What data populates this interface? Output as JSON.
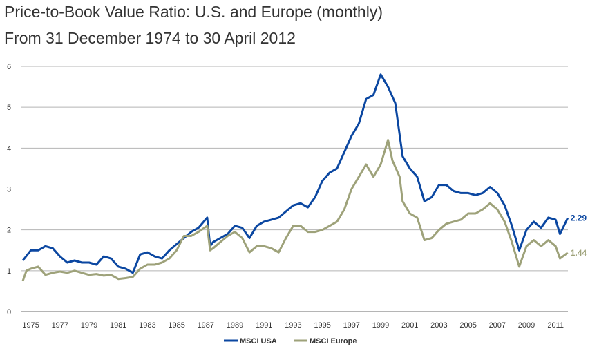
{
  "chart_data": {
    "type": "line",
    "title": "Price-to-Book Value Ratio: U.S. and Europe (monthly)",
    "subtitle": "From 31 December 1974 to 30 April 2012",
    "xlabel": "",
    "ylabel": "",
    "ylim": [
      0,
      6
    ],
    "yticks": [
      "0",
      "1",
      "2",
      "3",
      "4",
      "5",
      "6"
    ],
    "xticks": [
      "1975",
      "1977",
      "1979",
      "1981",
      "1983",
      "1985",
      "1987",
      "1989",
      "1991",
      "1993",
      "1995",
      "1997",
      "1999",
      "2001",
      "2003",
      "2005",
      "2007",
      "2009",
      "2011"
    ],
    "grid": true,
    "legend_position": "bottom",
    "series": [
      {
        "name": "MSCI USA",
        "color": "#0b47a1",
        "end_label": "2.29",
        "x": [
          1974.95,
          1975.5,
          1976,
          1976.5,
          1977,
          1977.5,
          1978,
          1978.5,
          1979,
          1979.5,
          1980,
          1980.5,
          1981,
          1981.5,
          1982,
          1982.5,
          1983,
          1983.5,
          1984,
          1984.5,
          1985,
          1985.5,
          1986,
          1986.5,
          1987,
          1987.6,
          1987.8,
          1988,
          1988.5,
          1989,
          1989.5,
          1990,
          1990.5,
          1991,
          1991.5,
          1992,
          1992.5,
          1993,
          1993.5,
          1994,
          1994.5,
          1995,
          1995.5,
          1996,
          1996.5,
          1997,
          1997.5,
          1998,
          1998.5,
          1999,
          1999.5,
          2000,
          2000.5,
          2001,
          2001.5,
          2002,
          2002.5,
          2003,
          2003.5,
          2004,
          2004.5,
          2005,
          2005.5,
          2006,
          2006.5,
          2007,
          2007.5,
          2008,
          2008.5,
          2009,
          2009.5,
          2010,
          2010.5,
          2011,
          2011.5,
          2011.8,
          2012.33
        ],
        "y": [
          1.25,
          1.5,
          1.5,
          1.6,
          1.55,
          1.35,
          1.2,
          1.25,
          1.2,
          1.2,
          1.15,
          1.35,
          1.3,
          1.1,
          1.05,
          0.95,
          1.4,
          1.45,
          1.35,
          1.3,
          1.5,
          1.65,
          1.8,
          1.95,
          2.05,
          2.3,
          1.6,
          1.7,
          1.8,
          1.9,
          2.1,
          2.05,
          1.8,
          2.1,
          2.2,
          2.25,
          2.3,
          2.45,
          2.6,
          2.65,
          2.55,
          2.8,
          3.2,
          3.4,
          3.5,
          3.9,
          4.3,
          4.6,
          5.2,
          5.3,
          5.8,
          5.5,
          5.1,
          3.8,
          3.5,
          3.3,
          2.7,
          2.8,
          3.1,
          3.1,
          2.95,
          2.9,
          2.9,
          2.85,
          2.9,
          3.05,
          2.9,
          2.6,
          2.1,
          1.5,
          2.0,
          2.2,
          2.05,
          2.3,
          2.25,
          1.9,
          2.29
        ]
      },
      {
        "name": "MSCI Europe",
        "color": "#9ea27a",
        "end_label": "1.44",
        "x": [
          1974.95,
          1975.2,
          1975.5,
          1976,
          1976.5,
          1977,
          1977.5,
          1978,
          1978.5,
          1979,
          1979.5,
          1980,
          1980.5,
          1981,
          1981.5,
          1982,
          1982.5,
          1983,
          1983.5,
          1984,
          1984.5,
          1985,
          1985.5,
          1986,
          1986.5,
          1987,
          1987.6,
          1987.8,
          1988,
          1988.5,
          1989,
          1989.5,
          1990,
          1990.5,
          1991,
          1991.5,
          1992,
          1992.5,
          1993,
          1993.5,
          1994,
          1994.5,
          1995,
          1995.5,
          1996,
          1996.5,
          1997,
          1997.5,
          1998,
          1998.5,
          1999,
          1999.5,
          2000,
          2000.3,
          2000.8,
          2001,
          2001.5,
          2002,
          2002.5,
          2003,
          2003.5,
          2004,
          2004.5,
          2005,
          2005.5,
          2006,
          2006.5,
          2007,
          2007.5,
          2008,
          2008.5,
          2009,
          2009.5,
          2010,
          2010.5,
          2011,
          2011.5,
          2011.8,
          2012.33
        ],
        "y": [
          0.75,
          1.0,
          1.05,
          1.1,
          0.9,
          0.95,
          0.98,
          0.95,
          1.0,
          0.95,
          0.9,
          0.92,
          0.88,
          0.9,
          0.8,
          0.82,
          0.85,
          1.05,
          1.15,
          1.15,
          1.2,
          1.3,
          1.5,
          1.85,
          1.85,
          1.95,
          2.1,
          1.5,
          1.55,
          1.7,
          1.85,
          1.95,
          1.8,
          1.45,
          1.6,
          1.6,
          1.55,
          1.45,
          1.8,
          2.1,
          2.1,
          1.95,
          1.95,
          2.0,
          2.1,
          2.2,
          2.5,
          3.0,
          3.3,
          3.6,
          3.3,
          3.6,
          4.2,
          3.7,
          3.3,
          2.7,
          2.4,
          2.3,
          1.75,
          1.8,
          2.0,
          2.15,
          2.2,
          2.25,
          2.4,
          2.4,
          2.5,
          2.65,
          2.5,
          2.2,
          1.7,
          1.1,
          1.6,
          1.75,
          1.6,
          1.75,
          1.6,
          1.3,
          1.44
        ]
      }
    ]
  }
}
